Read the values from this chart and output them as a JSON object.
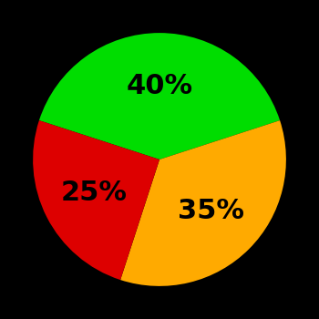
{
  "slices": [
    40,
    35,
    25
  ],
  "colors": [
    "#00dd00",
    "#ffaa00",
    "#dd0000"
  ],
  "labels": [
    "40%",
    "35%",
    "25%"
  ],
  "background_color": "#000000",
  "startangle": 162,
  "label_fontsize": 22,
  "label_fontweight": "bold",
  "label_color": "#000000",
  "label_r": 0.58
}
